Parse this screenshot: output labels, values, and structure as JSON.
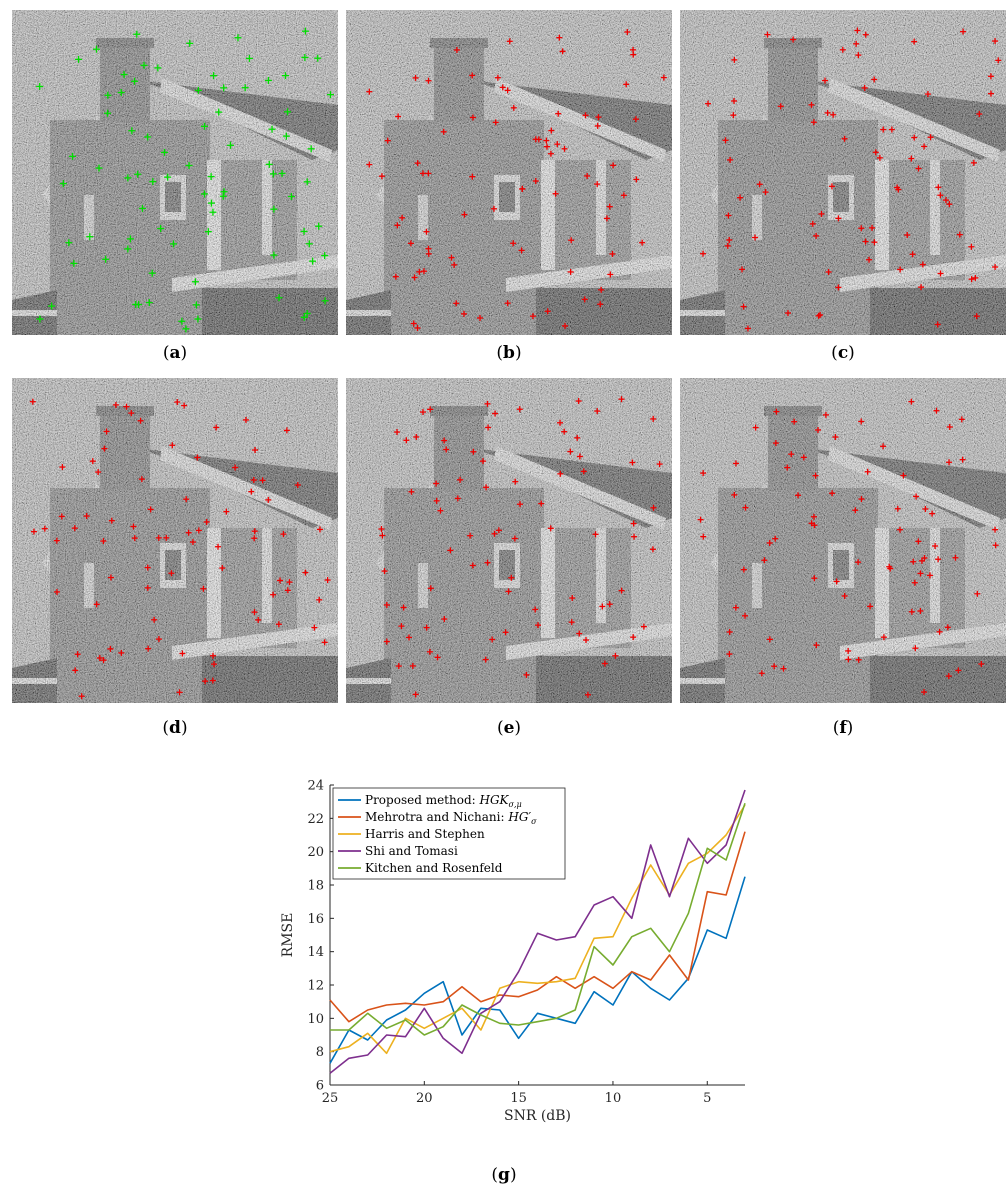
{
  "panels": [
    {
      "id": "a",
      "caption": "a",
      "marker_color": "#00dd00"
    },
    {
      "id": "b",
      "caption": "b",
      "marker_color": "#ee0000"
    },
    {
      "id": "c",
      "caption": "c",
      "marker_color": "#ee0000"
    },
    {
      "id": "d",
      "caption": "d",
      "marker_color": "#ee0000"
    },
    {
      "id": "e",
      "caption": "e",
      "marker_color": "#ee0000"
    },
    {
      "id": "f",
      "caption": "f",
      "marker_color": "#ee0000"
    }
  ],
  "chart_caption": "g",
  "chart_data": {
    "type": "line",
    "xlabel": "SNR (dB)",
    "ylabel": "RMSE",
    "x_reversed": true,
    "xlim": [
      3,
      25
    ],
    "ylim": [
      6,
      24
    ],
    "xticks": [
      25,
      20,
      15,
      10,
      5
    ],
    "yticks": [
      6,
      8,
      10,
      12,
      14,
      16,
      18,
      20,
      22,
      24
    ],
    "legend_position": "top-left",
    "grid": false,
    "x": [
      25,
      24,
      23,
      22,
      21,
      20,
      19,
      18,
      17,
      16,
      15,
      14,
      13,
      12,
      11,
      10,
      9,
      8,
      7,
      6,
      5,
      4,
      3
    ],
    "series": [
      {
        "name": "Proposed method: ",
        "math": "HGK",
        "sub": "σ,μ",
        "color": "#0072BD",
        "values": [
          7.3,
          9.3,
          8.7,
          9.9,
          10.5,
          11.5,
          12.2,
          9.0,
          10.6,
          10.5,
          8.8,
          10.3,
          10.0,
          9.7,
          11.6,
          10.8,
          12.8,
          11.8,
          11.1,
          12.4,
          15.3,
          14.8,
          18.5
        ]
      },
      {
        "name": "Mehrotra and Nichani: ",
        "math": "HG′",
        "sub": "σ",
        "color": "#D95319",
        "values": [
          11.1,
          9.8,
          10.5,
          10.8,
          10.9,
          10.8,
          11.0,
          11.9,
          11.0,
          11.4,
          11.3,
          11.7,
          12.5,
          11.8,
          12.5,
          11.8,
          12.8,
          12.3,
          13.8,
          12.3,
          17.6,
          17.4,
          21.2
        ]
      },
      {
        "name": "Harris and Stephen",
        "color": "#EDB120",
        "values": [
          8.0,
          8.3,
          9.1,
          7.9,
          10.0,
          9.4,
          10.0,
          10.6,
          9.3,
          11.8,
          12.2,
          12.1,
          12.2,
          12.4,
          14.8,
          14.9,
          17.2,
          19.2,
          17.4,
          19.3,
          19.9,
          21.0,
          22.8
        ]
      },
      {
        "name": "Shi and Tomasi",
        "color": "#7E2F8E",
        "values": [
          6.7,
          7.6,
          7.8,
          9.0,
          8.9,
          10.6,
          8.8,
          7.9,
          10.3,
          11.0,
          12.8,
          15.1,
          14.7,
          14.9,
          16.8,
          17.3,
          16.0,
          20.4,
          17.3,
          20.8,
          19.3,
          20.4,
          23.7
        ]
      },
      {
        "name": "Kitchen and Rosenfeld",
        "color": "#77AC30",
        "values": [
          9.3,
          9.3,
          10.3,
          9.4,
          9.9,
          9.0,
          9.5,
          10.8,
          10.2,
          9.7,
          9.6,
          9.8,
          10.0,
          10.5,
          14.3,
          13.2,
          14.9,
          15.4,
          14.0,
          16.3,
          20.2,
          19.5,
          22.9
        ]
      }
    ]
  }
}
